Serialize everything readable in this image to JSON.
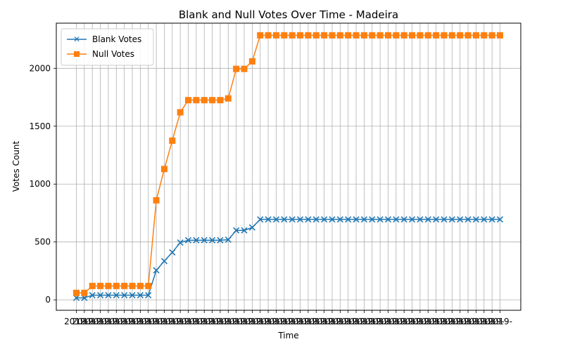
{
  "chart_data": {
    "type": "line",
    "title": "Blank and Null Votes Over Time - Madeira",
    "xlabel": "Time",
    "ylabel": "Votes Count",
    "ylim": [
      -90,
      2390
    ],
    "yticks": [
      0,
      500,
      1000,
      1500,
      2000
    ],
    "grid": true,
    "legend_position": "top-left",
    "x_tick_prefix": "2019-",
    "series": [
      {
        "name": "Blank Votes",
        "color": "#1f77b4",
        "marker": "x",
        "values": [
          17,
          17,
          40,
          40,
          40,
          40,
          40,
          40,
          40,
          40,
          255,
          335,
          410,
          495,
          515,
          515,
          515,
          515,
          515,
          520,
          600,
          600,
          625,
          695,
          695,
          695,
          695,
          695,
          695,
          695,
          695,
          695,
          695,
          695,
          695,
          695,
          695,
          695,
          695,
          695,
          695,
          695,
          695,
          695,
          695,
          695,
          695,
          695,
          695,
          695,
          695,
          695,
          695,
          695
        ]
      },
      {
        "name": "Null Votes",
        "color": "#ff7f0e",
        "marker": "s",
        "values": [
          60,
          60,
          120,
          120,
          120,
          120,
          120,
          120,
          120,
          120,
          860,
          1130,
          1375,
          1620,
          1725,
          1725,
          1725,
          1725,
          1725,
          1740,
          1995,
          1995,
          2060,
          2285,
          2285,
          2285,
          2285,
          2285,
          2285,
          2285,
          2285,
          2285,
          2285,
          2285,
          2285,
          2285,
          2285,
          2285,
          2285,
          2285,
          2285,
          2285,
          2285,
          2285,
          2285,
          2285,
          2285,
          2285,
          2285,
          2285,
          2285,
          2285,
          2285,
          2285
        ]
      }
    ]
  }
}
